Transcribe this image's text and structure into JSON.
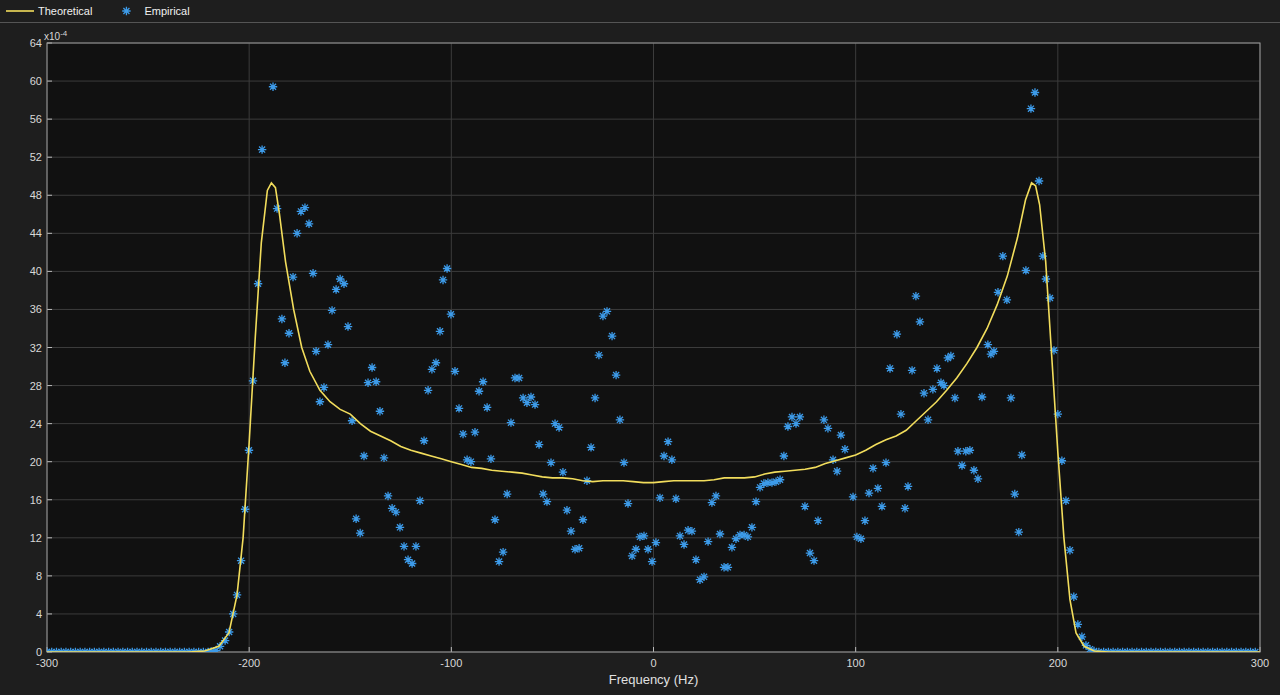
{
  "chart_data": {
    "type": "scatter",
    "xlabel": "Frequency (Hz)",
    "annotations": [
      {
        "text": "x10",
        "superscript": "-4"
      }
    ],
    "xlim": [
      -300,
      300
    ],
    "ylim": [
      0,
      64
    ],
    "xticks": [
      -300,
      -200,
      -100,
      0,
      100,
      200,
      300
    ],
    "yticks": [
      0,
      4,
      8,
      12,
      16,
      20,
      24,
      28,
      32,
      36,
      40,
      44,
      48,
      52,
      56,
      60,
      64
    ],
    "grid": true,
    "legend": "top-left",
    "series": [
      {
        "name": "Theoretical",
        "type": "line",
        "color": "#f2dd5c",
        "line_style": "solid",
        "x": [
          -300,
          -230,
          -222,
          -215,
          -210,
          -206,
          -203,
          -200,
          -197,
          -194,
          -191,
          -189,
          -187,
          -185,
          -182,
          -178,
          -174,
          -170,
          -165,
          -160,
          -155,
          -150,
          -145,
          -140,
          -135,
          -130,
          -125,
          -120,
          -115,
          -110,
          -105,
          -100,
          -95,
          -90,
          -85,
          -80,
          -75,
          -70,
          -65,
          -60,
          -55,
          -50,
          -45,
          -40,
          -35,
          -30,
          -25,
          -20,
          -15,
          -10,
          -5,
          0,
          5,
          10,
          15,
          20,
          25,
          30,
          35,
          40,
          45,
          50,
          55,
          60,
          65,
          70,
          75,
          80,
          85,
          90,
          95,
          100,
          105,
          110,
          115,
          120,
          125,
          130,
          135,
          140,
          145,
          150,
          155,
          160,
          165,
          170,
          175,
          180,
          184,
          187,
          189,
          191,
          194,
          197,
          200,
          203,
          206,
          209,
          213,
          218,
          225,
          300
        ],
        "values": [
          0,
          0,
          0.1,
          0.6,
          2,
          6,
          12,
          22,
          33,
          43,
          48.5,
          49.3,
          48.8,
          46,
          41,
          36,
          32,
          29.5,
          27.5,
          26.3,
          25.5,
          25,
          24,
          23.2,
          22.7,
          22.2,
          21.6,
          21.2,
          20.9,
          20.6,
          20.3,
          20,
          19.7,
          19.4,
          19.3,
          19.1,
          19,
          18.9,
          18.8,
          18.6,
          18.4,
          18.3,
          18.3,
          18.2,
          18,
          17.9,
          18,
          18,
          18,
          17.9,
          17.8,
          17.8,
          17.9,
          18,
          18,
          18,
          18,
          18.1,
          18.3,
          18.3,
          18.3,
          18.4,
          18.7,
          18.9,
          19,
          19.1,
          19.2,
          19.4,
          19.8,
          20.1,
          20.4,
          20.7,
          21.2,
          21.8,
          22.3,
          22.7,
          23.3,
          24.3,
          25.3,
          26.3,
          27.5,
          28.8,
          30.3,
          32,
          34,
          36.5,
          39.5,
          43.5,
          47.5,
          49.3,
          49,
          47,
          41,
          31,
          21,
          12,
          5.5,
          2,
          0.6,
          0.1,
          0,
          0
        ]
      },
      {
        "name": "Empirical",
        "type": "scatter",
        "color": "#3d9be9",
        "marker": "asterisk",
        "x": [
          -300,
          -297.66,
          -295.31,
          -292.97,
          -290.63,
          -288.28,
          -285.94,
          -283.59,
          -281.25,
          -278.91,
          -276.56,
          -274.22,
          -271.88,
          -269.53,
          -267.19,
          -264.84,
          -262.5,
          -260.16,
          -257.81,
          -255.47,
          -253.13,
          -250.78,
          -248.44,
          -246.09,
          -243.75,
          -241.41,
          -239.06,
          -236.72,
          -234.38,
          -232.03,
          -229.69,
          -227.34,
          -225,
          -222.66,
          -220.31,
          -218.8,
          -216.4,
          -214.4,
          -211.9,
          -209.9,
          -207.9,
          -206,
          -204,
          -202,
          -200.1,
          -198.1,
          -195.6,
          -193.6,
          -188.2,
          -186.2,
          -183.8,
          -182.3,
          -180.3,
          -178.3,
          -176.3,
          -174.4,
          -172.4,
          -170.4,
          -168.4,
          -166.9,
          -165,
          -163,
          -161,
          -159,
          -157,
          -155,
          -153.1,
          -151.1,
          -149.1,
          -147.1,
          -145.1,
          -143.2,
          -141.2,
          -139.2,
          -137.2,
          -135.3,
          -133.3,
          -131.3,
          -129.3,
          -127.4,
          -125.4,
          -123.4,
          -121.4,
          -119.4,
          -117.5,
          -115.5,
          -113.5,
          -111.5,
          -109.6,
          -107.6,
          -105.6,
          -104.1,
          -102.1,
          -100.2,
          -98.2,
          -96.2,
          -94.2,
          -92.2,
          -90.3,
          -88.3,
          -86.3,
          -84.3,
          -82.3,
          -80.4,
          -78.4,
          -76.4,
          -74.4,
          -72.4,
          -70.5,
          -68.5,
          -66.5,
          -64.5,
          -62.6,
          -60.6,
          -58.6,
          -56.6,
          -54.6,
          -52.7,
          -50.7,
          -48.7,
          -46.7,
          -44.8,
          -42.8,
          -40.8,
          -38.8,
          -36.8,
          -34.9,
          -32.9,
          -30.9,
          -28.9,
          -27,
          -25,
          -23,
          -20.5,
          -18.5,
          -16.6,
          -14.6,
          -12.6,
          -10.6,
          -8.7,
          -6.7,
          -4.7,
          -2.7,
          -0.7,
          1.2,
          3.2,
          5.2,
          7.2,
          9.1,
          11.1,
          13.1,
          15.1,
          17.1,
          19,
          21,
          23,
          25,
          27,
          28.9,
          30.9,
          32.9,
          34.9,
          36.8,
          38.8,
          40.8,
          42.8,
          44.8,
          46.7,
          48.7,
          50.7,
          52.7,
          54.6,
          56.6,
          58.6,
          60.6,
          62.6,
          64.5,
          66.5,
          68.5,
          70.5,
          72.4,
          74.9,
          77.4,
          79.4,
          81.4,
          84.3,
          86.3,
          88.8,
          90.8,
          92.7,
          94.7,
          98.7,
          100.6,
          102.6,
          104.6,
          106.6,
          108.6,
          111,
          113,
          115,
          117,
          120.4,
          122.4,
          124.4,
          125.9,
          127.9,
          129.8,
          131.8,
          133.8,
          135.8,
          138.2,
          140.2,
          142.2,
          143.7,
          145.6,
          147.1,
          149.1,
          150.6,
          152.6,
          154.5,
          156.5,
          158.5,
          160.5,
          162.5,
          165.4,
          166.9,
          168.4,
          170.4,
          172.8,
          174.8,
          176.8,
          178.7,
          180.7,
          182.2,
          184.2,
          186.7,
          188.7,
          190.7,
          192.6,
          194.1,
          196.1,
          198.1,
          200,
          202,
          204,
          206,
          207.9,
          209.9,
          211.9,
          213.9,
          215.9,
          217.9,
          220.31,
          222.66,
          225,
          227.34,
          229.69,
          232.03,
          234.38,
          236.72,
          239.06,
          241.41,
          243.75,
          246.09,
          248.44,
          250.78,
          253.13,
          255.47,
          257.81,
          260.16,
          262.5,
          264.84,
          267.19,
          269.53,
          271.88,
          274.22,
          276.56,
          278.91,
          281.25,
          283.59,
          285.94,
          288.28,
          290.63,
          292.97,
          295.31,
          297.66
        ],
        "values": [
          0,
          0,
          0,
          0,
          0,
          0,
          0,
          0,
          0,
          0,
          0,
          0,
          0,
          0,
          0,
          0,
          0,
          0,
          0,
          0,
          0,
          0,
          0,
          0,
          0,
          0,
          0,
          0,
          0,
          0,
          0,
          0,
          0,
          0,
          0,
          0.05,
          0.15,
          0.6,
          1.2,
          2.1,
          4,
          6,
          9.6,
          15,
          21.2,
          28.5,
          38.7,
          52.8,
          59.4,
          46.6,
          35,
          30.4,
          33.5,
          39.4,
          44,
          46.3,
          46.7,
          45,
          39.8,
          31.6,
          26.3,
          27.8,
          32.3,
          35.9,
          38.1,
          39.2,
          38.7,
          34.2,
          24.3,
          14,
          12.5,
          20.6,
          28.3,
          29.9,
          28.4,
          25.3,
          20.4,
          16.4,
          15.1,
          14.7,
          13.1,
          11.1,
          9.7,
          9.3,
          11.1,
          15.9,
          22.2,
          27.5,
          29.7,
          30.4,
          33.7,
          39.1,
          40.3,
          35.5,
          29.5,
          25.6,
          22.9,
          20.2,
          20,
          23.1,
          27.4,
          28.4,
          25.7,
          20.3,
          13.9,
          9.5,
          10.5,
          16.6,
          24.1,
          28.8,
          28.8,
          26.7,
          26.2,
          26.8,
          26,
          21.8,
          16.6,
          15.8,
          19.9,
          24,
          23.6,
          18.9,
          14.9,
          12.7,
          10.8,
          10.9,
          13.9,
          18,
          21.5,
          26.7,
          31.2,
          35.3,
          35.8,
          33.2,
          29.1,
          24.4,
          19.9,
          15.6,
          10.1,
          10.8,
          12.1,
          12.2,
          10.8,
          9.5,
          11.5,
          16.2,
          20.6,
          22.1,
          20.2,
          16.1,
          12.2,
          11.3,
          12.8,
          12.7,
          9.7,
          7.6,
          7.9,
          11.6,
          15.7,
          16.4,
          12.4,
          8.9,
          8.9,
          11,
          11.9,
          12.3,
          12.3,
          12.1,
          13.1,
          15.8,
          17.3,
          17.7,
          17.8,
          17.8,
          17.9,
          18.1,
          20.6,
          23.7,
          24.7,
          24,
          24.7,
          15.3,
          10.4,
          9.6,
          13.8,
          24.4,
          23.5,
          20.2,
          19,
          22.8,
          21.3,
          16.3,
          12.1,
          11.9,
          13.8,
          16.7,
          19.3,
          17.2,
          15.3,
          19.9,
          29.8,
          33.4,
          25,
          15.1,
          17.4,
          29.6,
          37.4,
          34.7,
          27.2,
          24.4,
          27.6,
          29.8,
          28.3,
          28,
          30.9,
          31.1,
          26.7,
          21.1,
          19.6,
          21.1,
          21.2,
          19.1,
          18.2,
          26.8,
          32.3,
          31.3,
          31.6,
          37.8,
          41.6,
          37,
          26.7,
          16.6,
          12.6,
          20.7,
          40.1,
          57.1,
          58.8,
          49.5,
          41.6,
          39.2,
          37.2,
          31.7,
          25,
          20.1,
          15.9,
          10.7,
          5.8,
          2.9,
          1.6,
          0.7,
          0.3,
          0.1,
          0,
          0,
          0,
          0,
          0,
          0,
          0,
          0,
          0,
          0,
          0,
          0,
          0,
          0,
          0,
          0,
          0,
          0,
          0,
          0,
          0,
          0,
          0,
          0,
          0,
          0,
          0,
          0,
          0,
          0,
          0,
          0,
          0,
          0
        ]
      }
    ]
  }
}
